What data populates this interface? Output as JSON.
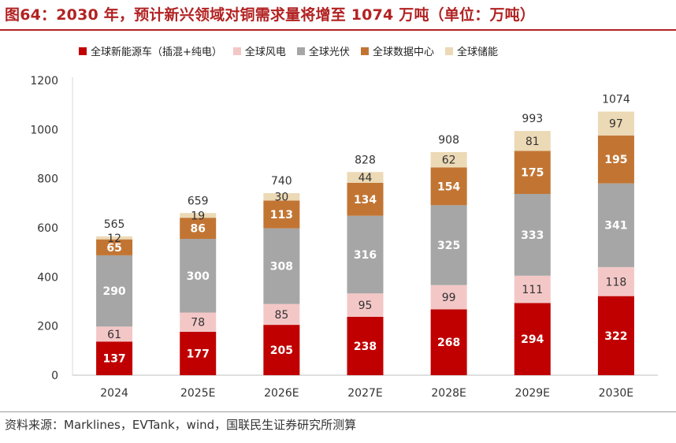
{
  "header": {
    "title": "图64：2030 年，预计新兴领域对铜需求量将增至 1074 万吨（单位：万吨）"
  },
  "footer": {
    "source": "资料来源：Marklines，EVTank，wind，国联民生证券研究所测算"
  },
  "colors": {
    "title": "#b22222",
    "ev": "#c00000",
    "wind": "#f4c7c7",
    "pv": "#a6a6a6",
    "datacenter": "#c27533",
    "storage": "#ecd9b5"
  },
  "chart_data": {
    "type": "bar",
    "stacked": true,
    "categories": [
      "2024",
      "2025E",
      "2026E",
      "2027E",
      "2028E",
      "2029E",
      "2030E"
    ],
    "series": [
      {
        "name": "全球新能源车（插混+纯电）",
        "color_key": "ev",
        "values": [
          137,
          177,
          205,
          238,
          268,
          294,
          322
        ]
      },
      {
        "name": "全球风电",
        "color_key": "wind",
        "values": [
          61,
          78,
          85,
          95,
          99,
          111,
          118
        ]
      },
      {
        "name": "全球光伏",
        "color_key": "pv",
        "values": [
          290,
          300,
          308,
          316,
          325,
          333,
          341
        ]
      },
      {
        "name": "全球数据中心",
        "color_key": "datacenter",
        "values": [
          65,
          86,
          113,
          134,
          154,
          175,
          195
        ]
      },
      {
        "name": "全球储能",
        "color_key": "storage",
        "values": [
          12,
          19,
          30,
          44,
          62,
          81,
          97
        ]
      }
    ],
    "totals": [
      565,
      659,
      740,
      828,
      908,
      993,
      1074
    ],
    "ylim": [
      0,
      1200
    ],
    "yticks": [
      0,
      200,
      400,
      600,
      800,
      1000,
      1200
    ],
    "grid": false,
    "legend_position": "top"
  }
}
